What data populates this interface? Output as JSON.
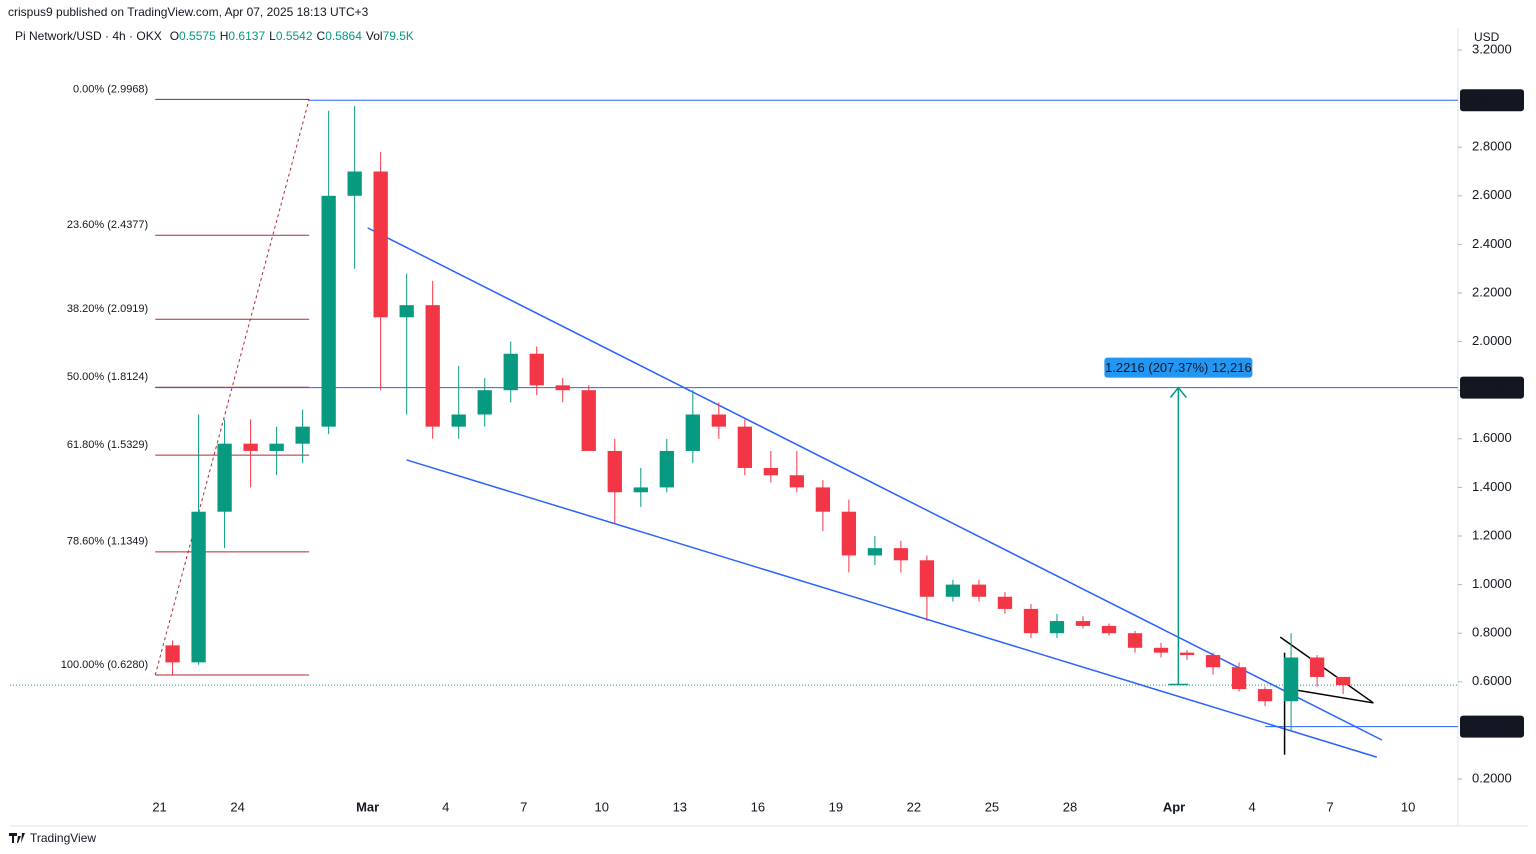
{
  "header": {
    "publisher": "crispus9 published on TradingView.com, Apr 07, 2025 18:13 UTC+3"
  },
  "chart_data": {
    "type": "candlestick",
    "title": "Pi Network/USD · 4h · OKX",
    "ohlc_legend": [
      {
        "label": "O",
        "value": 0.5575
      },
      {
        "label": "H",
        "value": 0.6137
      },
      {
        "label": "L",
        "value": 0.5542
      },
      {
        "label": "C",
        "value": 0.5864
      },
      {
        "label": "Vol",
        "value": "79.5K"
      }
    ],
    "currency": "USD",
    "x": [
      "2025-02-21",
      "2025-02-22",
      "2025-02-23",
      "2025-02-24",
      "2025-02-25",
      "2025-02-26",
      "2025-02-27",
      "2025-02-28",
      "2025-03-01",
      "2025-03-02",
      "2025-03-03",
      "2025-03-04",
      "2025-03-05",
      "2025-03-06",
      "2025-03-07",
      "2025-03-08",
      "2025-03-09",
      "2025-03-10",
      "2025-03-11",
      "2025-03-12",
      "2025-03-13",
      "2025-03-14",
      "2025-03-15",
      "2025-03-16",
      "2025-03-17",
      "2025-03-18",
      "2025-03-19",
      "2025-03-20",
      "2025-03-21",
      "2025-03-22",
      "2025-03-23",
      "2025-03-24",
      "2025-03-25",
      "2025-03-26",
      "2025-03-27",
      "2025-03-28",
      "2025-03-29",
      "2025-03-30",
      "2025-03-31",
      "2025-04-01",
      "2025-04-02",
      "2025-04-03",
      "2025-04-04",
      "2025-04-05",
      "2025-04-06",
      "2025-04-07"
    ],
    "open": [
      0.75,
      0.68,
      1.3,
      1.58,
      1.55,
      1.58,
      1.65,
      2.6,
      2.7,
      2.1,
      2.15,
      1.65,
      1.7,
      1.8,
      1.95,
      1.82,
      1.8,
      1.55,
      1.38,
      1.4,
      1.55,
      1.7,
      1.65,
      1.48,
      1.45,
      1.4,
      1.3,
      1.12,
      1.15,
      1.1,
      0.95,
      1.0,
      0.95,
      0.9,
      0.8,
      0.85,
      0.83,
      0.8,
      0.74,
      0.72,
      0.71,
      0.66,
      0.57,
      0.52,
      0.7,
      0.62
    ],
    "high": [
      0.77,
      1.7,
      1.68,
      1.68,
      1.65,
      1.72,
      2.95,
      2.97,
      2.78,
      2.28,
      2.25,
      1.9,
      1.85,
      2.0,
      1.98,
      1.85,
      1.82,
      1.6,
      1.48,
      1.6,
      1.8,
      1.75,
      1.68,
      1.55,
      1.55,
      1.43,
      1.35,
      1.2,
      1.18,
      1.12,
      1.02,
      1.02,
      0.97,
      0.92,
      0.88,
      0.87,
      0.84,
      0.81,
      0.76,
      0.73,
      0.72,
      0.68,
      0.58,
      0.8,
      0.71,
      0.62
    ],
    "low": [
      0.63,
      0.67,
      1.15,
      1.4,
      1.45,
      1.5,
      1.62,
      2.3,
      1.8,
      1.7,
      1.6,
      1.6,
      1.65,
      1.75,
      1.78,
      1.75,
      1.55,
      1.25,
      1.32,
      1.38,
      1.5,
      1.6,
      1.45,
      1.42,
      1.38,
      1.22,
      1.05,
      1.08,
      1.05,
      0.85,
      0.93,
      0.93,
      0.88,
      0.78,
      0.78,
      0.82,
      0.79,
      0.72,
      0.7,
      0.69,
      0.63,
      0.56,
      0.5,
      0.4,
      0.58,
      0.55
    ],
    "close": [
      0.68,
      1.3,
      1.58,
      1.55,
      1.58,
      1.65,
      2.6,
      2.7,
      2.1,
      2.15,
      1.65,
      1.7,
      1.8,
      1.95,
      1.82,
      1.8,
      1.55,
      1.38,
      1.4,
      1.55,
      1.7,
      1.65,
      1.48,
      1.45,
      1.4,
      1.3,
      1.12,
      1.15,
      1.1,
      0.95,
      1.0,
      0.95,
      0.9,
      0.8,
      0.85,
      0.83,
      0.8,
      0.74,
      0.72,
      0.71,
      0.66,
      0.57,
      0.52,
      0.7,
      0.62,
      0.5864
    ],
    "up_color": "#089981",
    "down_color": "#f23645",
    "xlim": [
      "2025-02-15T06:00",
      "2025-04-11T22:00"
    ],
    "xticks": [
      {
        "value": "2025-02-21",
        "label": "21"
      },
      {
        "value": "2025-02-24",
        "label": "24"
      },
      {
        "value": "2025-03-01",
        "label": "Mar"
      },
      {
        "value": "2025-03-04",
        "label": "4"
      },
      {
        "value": "2025-03-07",
        "label": "7"
      },
      {
        "value": "2025-03-10",
        "label": "10"
      },
      {
        "value": "2025-03-13",
        "label": "13"
      },
      {
        "value": "2025-03-16",
        "label": "16"
      },
      {
        "value": "2025-03-19",
        "label": "19"
      },
      {
        "value": "2025-03-22",
        "label": "22"
      },
      {
        "value": "2025-03-25",
        "label": "25"
      },
      {
        "value": "2025-03-28",
        "label": "28"
      },
      {
        "value": "2025-04-01",
        "label": "Apr"
      },
      {
        "value": "2025-04-04",
        "label": "4"
      },
      {
        "value": "2025-04-07",
        "label": "7"
      },
      {
        "value": "2025-04-10",
        "label": "10"
      }
    ],
    "ylim": [
      0.1136,
      3.2206
    ],
    "yticks": [
      {
        "value": 0.2,
        "label": "0.2000"
      },
      {
        "value": 0.6,
        "label": "0.6000"
      },
      {
        "value": 0.8,
        "label": "0.8000"
      },
      {
        "value": 1.0,
        "label": "1.0000"
      },
      {
        "value": 1.2,
        "label": "1.2000"
      },
      {
        "value": 1.4,
        "label": "1.4000"
      },
      {
        "value": 1.6,
        "label": "1.6000"
      },
      {
        "value": 1.8,
        "label": "1.8000"
      },
      {
        "value": 2.0,
        "label": "2.0000"
      },
      {
        "value": 2.2,
        "label": "2.2000"
      },
      {
        "value": 2.4,
        "label": "2.4000"
      },
      {
        "value": 2.6,
        "label": "2.6000"
      },
      {
        "value": 2.8,
        "label": "2.8000"
      },
      {
        "value": 3.2,
        "label": "3.2000"
      }
    ],
    "fibonacci": {
      "x": [
        "2025-02-20T20:00",
        "2025-02-26T18:00"
      ],
      "color": "#b22833",
      "levels": [
        {
          "value": 2.9968,
          "label": "0.00% (2.9968)"
        },
        {
          "value": 2.4377,
          "label": "23.60% (2.4377)"
        },
        {
          "value": 2.0919,
          "label": "38.20% (2.0919)"
        },
        {
          "value": 1.8124,
          "label": "50.00% (1.8124)"
        },
        {
          "value": 1.5329,
          "label": "61.80% (1.5329)"
        },
        {
          "value": 1.1349,
          "label": "78.60% (1.1349)"
        },
        {
          "value": 0.628,
          "label": "100.00% (0.6280)"
        }
      ]
    },
    "price_lines": [
      2.9932,
      1.8106,
      0.4156
    ],
    "price_line_color": "#2962ff",
    "measure": {
      "x": "2025-04-01T04:00",
      "from": 0.589,
      "to": 1.8106,
      "label": "1.2216 (207.37%) 12,216",
      "color": "#089981",
      "label_color": "#2196f3"
    },
    "trendlines": [
      {
        "x": [
          "2025-03-01T00:00",
          "2025-04-09T00:00"
        ],
        "y": [
          2.468,
          0.36
        ],
        "color": "#2962ff"
      },
      {
        "x": [
          "2025-03-02T12:00",
          "2025-04-08T19:00"
        ],
        "y": [
          1.513,
          0.29
        ],
        "color": "#2962ff"
      },
      {
        "x": [
          "2025-04-05T02:00",
          "2025-04-08T16:00"
        ],
        "y": [
          0.784,
          0.513
        ],
        "color": "#000000"
      },
      {
        "x": [
          "2025-04-05T06:00",
          "2025-04-08T16:00"
        ],
        "y": [
          0.574,
          0.513
        ],
        "color": "#000000"
      },
      {
        "x": [
          "2025-04-05T06:00",
          "2025-04-05T06:00"
        ],
        "y": [
          0.72,
          0.3
        ],
        "color": "#000000"
      }
    ],
    "footer": "TradingView"
  }
}
